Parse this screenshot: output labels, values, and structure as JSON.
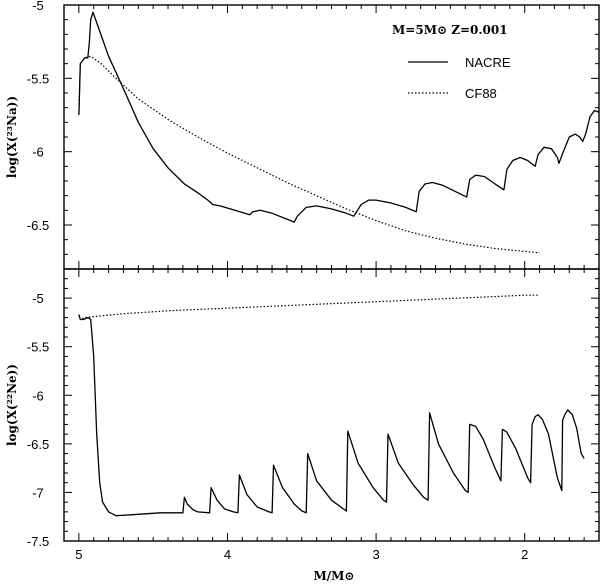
{
  "chart_data": [
    {
      "type": "line",
      "panel": "top",
      "ylabel": "log(X(²³Na))",
      "title": "M=5M⊙   Z=0.001",
      "legend_placement": "top-right",
      "xlim": [
        5.1,
        1.5
      ],
      "ylim": [
        -6.8,
        -5.0
      ],
      "yticks": [
        "-5",
        "-5.5",
        "-6",
        "-6.5"
      ],
      "ytick_values": [
        -5,
        -5.5,
        -6,
        -6.5
      ],
      "series": [
        {
          "name": "NACRE",
          "style": "solid",
          "points": [
            [
              5.0,
              -5.75
            ],
            [
              4.99,
              -5.4
            ],
            [
              4.96,
              -5.36
            ],
            [
              4.94,
              -5.36
            ],
            [
              4.93,
              -5.26
            ],
            [
              4.92,
              -5.1
            ],
            [
              4.905,
              -5.05
            ],
            [
              4.88,
              -5.12
            ],
            [
              4.8,
              -5.35
            ],
            [
              4.7,
              -5.57
            ],
            [
              4.6,
              -5.8
            ],
            [
              4.5,
              -5.98
            ],
            [
              4.4,
              -6.11
            ],
            [
              4.3,
              -6.21
            ],
            [
              4.29,
              -6.22
            ],
            [
              4.2,
              -6.28
            ],
            [
              4.12,
              -6.34
            ],
            [
              4.1,
              -6.36
            ],
            [
              4.05,
              -6.37
            ],
            [
              3.95,
              -6.4
            ],
            [
              3.85,
              -6.43
            ],
            [
              3.83,
              -6.41
            ],
            [
              3.78,
              -6.4
            ],
            [
              3.7,
              -6.42
            ],
            [
              3.6,
              -6.46
            ],
            [
              3.55,
              -6.48
            ],
            [
              3.53,
              -6.44
            ],
            [
              3.47,
              -6.38
            ],
            [
              3.4,
              -6.37
            ],
            [
              3.3,
              -6.39
            ],
            [
              3.2,
              -6.42
            ],
            [
              3.15,
              -6.44
            ],
            [
              3.1,
              -6.36
            ],
            [
              3.05,
              -6.33
            ],
            [
              3.0,
              -6.33
            ],
            [
              2.9,
              -6.35
            ],
            [
              2.8,
              -6.38
            ],
            [
              2.73,
              -6.41
            ],
            [
              2.71,
              -6.27
            ],
            [
              2.67,
              -6.22
            ],
            [
              2.62,
              -6.21
            ],
            [
              2.55,
              -6.23
            ],
            [
              2.45,
              -6.28
            ],
            [
              2.39,
              -6.31
            ],
            [
              2.37,
              -6.19
            ],
            [
              2.33,
              -6.16
            ],
            [
              2.27,
              -6.17
            ],
            [
              2.2,
              -6.22
            ],
            [
              2.14,
              -6.26
            ],
            [
              2.12,
              -6.12
            ],
            [
              2.08,
              -6.06
            ],
            [
              2.03,
              -6.04
            ],
            [
              1.98,
              -6.06
            ],
            [
              1.93,
              -6.1
            ],
            [
              1.91,
              -6.02
            ],
            [
              1.87,
              -5.97
            ],
            [
              1.82,
              -5.98
            ],
            [
              1.78,
              -6.04
            ],
            [
              1.77,
              -6.08
            ],
            [
              1.74,
              -6.0
            ],
            [
              1.7,
              -5.9
            ],
            [
              1.66,
              -5.88
            ],
            [
              1.63,
              -5.9
            ],
            [
              1.61,
              -5.93
            ],
            [
              1.59,
              -5.88
            ],
            [
              1.56,
              -5.76
            ],
            [
              1.53,
              -5.72
            ],
            [
              1.5,
              -5.73
            ]
          ]
        },
        {
          "name": "CF88",
          "style": "dotted",
          "points": [
            [
              5.0,
              -5.75
            ],
            [
              4.99,
              -5.4
            ],
            [
              4.96,
              -5.36
            ],
            [
              4.92,
              -5.35
            ],
            [
              4.85,
              -5.4
            ],
            [
              4.75,
              -5.5
            ],
            [
              4.6,
              -5.64
            ],
            [
              4.4,
              -5.78
            ],
            [
              4.2,
              -5.9
            ],
            [
              4.0,
              -6.01
            ],
            [
              3.8,
              -6.11
            ],
            [
              3.6,
              -6.21
            ],
            [
              3.4,
              -6.3
            ],
            [
              3.2,
              -6.39
            ],
            [
              3.0,
              -6.47
            ],
            [
              2.8,
              -6.54
            ],
            [
              2.6,
              -6.59
            ],
            [
              2.4,
              -6.63
            ],
            [
              2.2,
              -6.66
            ],
            [
              2.0,
              -6.68
            ],
            [
              1.9,
              -6.69
            ]
          ]
        }
      ]
    },
    {
      "type": "line",
      "panel": "bottom",
      "xlabel": "M/M⊙",
      "ylabel": "log(X(²²Ne))",
      "xlim": [
        5.1,
        1.5
      ],
      "ylim": [
        -7.5,
        -4.7
      ],
      "xticks": [
        "5",
        "4",
        "3",
        "2"
      ],
      "xtick_values": [
        5,
        4,
        3,
        2
      ],
      "yticks": [
        "-5",
        "-5.5",
        "-6",
        "-6.5",
        "-7",
        "-7.5"
      ],
      "ytick_values": [
        -5,
        -5.5,
        -6,
        -6.5,
        -7,
        -7.5
      ],
      "series": [
        {
          "name": "NACRE",
          "style": "solid",
          "points": [
            [
              5.0,
              -5.17
            ],
            [
              4.99,
              -5.22
            ],
            [
              4.97,
              -5.22
            ],
            [
              4.94,
              -5.2
            ],
            [
              4.92,
              -5.22
            ],
            [
              4.9,
              -5.6
            ],
            [
              4.88,
              -6.4
            ],
            [
              4.86,
              -6.9
            ],
            [
              4.84,
              -7.1
            ],
            [
              4.8,
              -7.2
            ],
            [
              4.75,
              -7.24
            ],
            [
              4.65,
              -7.23
            ],
            [
              4.55,
              -7.22
            ],
            [
              4.45,
              -7.21
            ],
            [
              4.3,
              -7.21
            ],
            [
              4.29,
              -7.05
            ],
            [
              4.27,
              -7.12
            ],
            [
              4.23,
              -7.18
            ],
            [
              4.2,
              -7.2
            ],
            [
              4.12,
              -7.21
            ],
            [
              4.11,
              -6.95
            ],
            [
              4.07,
              -7.08
            ],
            [
              4.02,
              -7.17
            ],
            [
              3.96,
              -7.2
            ],
            [
              3.93,
              -7.21
            ],
            [
              3.92,
              -6.82
            ],
            [
              3.87,
              -7.02
            ],
            [
              3.8,
              -7.15
            ],
            [
              3.72,
              -7.2
            ],
            [
              3.7,
              -7.21
            ],
            [
              3.69,
              -6.72
            ],
            [
              3.63,
              -6.95
            ],
            [
              3.55,
              -7.12
            ],
            [
              3.5,
              -7.19
            ],
            [
              3.47,
              -7.21
            ],
            [
              3.46,
              -6.6
            ],
            [
              3.4,
              -6.88
            ],
            [
              3.3,
              -7.08
            ],
            [
              3.22,
              -7.17
            ],
            [
              3.2,
              -7.19
            ],
            [
              3.19,
              -6.37
            ],
            [
              3.12,
              -6.7
            ],
            [
              3.02,
              -6.95
            ],
            [
              2.95,
              -7.08
            ],
            [
              2.93,
              -7.1
            ],
            [
              2.92,
              -6.4
            ],
            [
              2.85,
              -6.7
            ],
            [
              2.75,
              -6.92
            ],
            [
              2.68,
              -7.05
            ],
            [
              2.65,
              -7.08
            ],
            [
              2.64,
              -6.18
            ],
            [
              2.58,
              -6.5
            ],
            [
              2.48,
              -6.8
            ],
            [
              2.4,
              -6.98
            ],
            [
              2.38,
              -7.0
            ],
            [
              2.37,
              -6.3
            ],
            [
              2.33,
              -6.32
            ],
            [
              2.28,
              -6.45
            ],
            [
              2.2,
              -6.75
            ],
            [
              2.16,
              -6.88
            ],
            [
              2.15,
              -6.35
            ],
            [
              2.12,
              -6.38
            ],
            [
              2.06,
              -6.55
            ],
            [
              1.98,
              -6.85
            ],
            [
              1.96,
              -6.9
            ],
            [
              1.95,
              -6.3
            ],
            [
              1.93,
              -6.22
            ],
            [
              1.91,
              -6.2
            ],
            [
              1.88,
              -6.25
            ],
            [
              1.84,
              -6.4
            ],
            [
              1.8,
              -6.7
            ],
            [
              1.78,
              -6.85
            ],
            [
              1.75,
              -6.98
            ],
            [
              1.745,
              -6.26
            ],
            [
              1.73,
              -6.2
            ],
            [
              1.71,
              -6.15
            ],
            [
              1.68,
              -6.2
            ],
            [
              1.65,
              -6.34
            ],
            [
              1.62,
              -6.6
            ],
            [
              1.6,
              -6.65
            ]
          ]
        },
        {
          "name": "CF88",
          "style": "dotted",
          "points": [
            [
              5.0,
              -5.17
            ],
            [
              4.99,
              -5.22
            ],
            [
              4.96,
              -5.2
            ],
            [
              4.9,
              -5.19
            ],
            [
              4.7,
              -5.16
            ],
            [
              4.4,
              -5.13
            ],
            [
              4.1,
              -5.11
            ],
            [
              3.8,
              -5.09
            ],
            [
              3.5,
              -5.07
            ],
            [
              3.2,
              -5.05
            ],
            [
              2.9,
              -5.03
            ],
            [
              2.6,
              -5.01
            ],
            [
              2.3,
              -4.99
            ],
            [
              2.0,
              -4.97
            ],
            [
              1.9,
              -4.97
            ]
          ]
        }
      ]
    }
  ]
}
